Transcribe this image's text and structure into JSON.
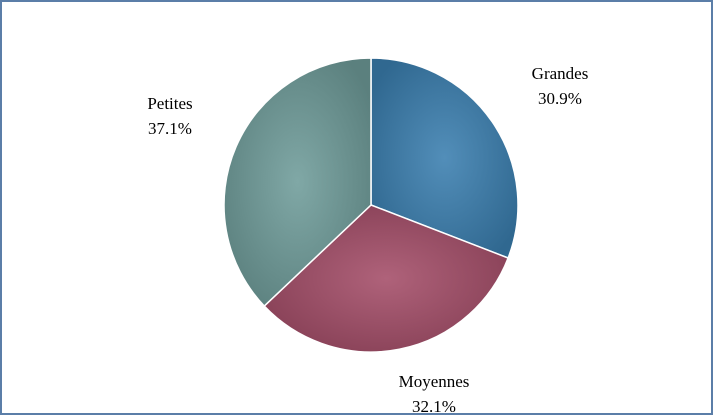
{
  "chart_data": {
    "type": "pie",
    "title": "",
    "slices": [
      {
        "label": "Grandes",
        "value": 30.9,
        "value_text": "30.9%",
        "color": "#3a7fb0"
      },
      {
        "label": "Moyennes",
        "value": 32.1,
        "value_text": "32.1%",
        "color": "#a44d68"
      },
      {
        "label": "Petites",
        "value": 37.1,
        "value_text": "37.1%",
        "color": "#6f9c9a"
      }
    ],
    "start_angle_deg": 0,
    "direction": "clockwise",
    "legend": "none"
  }
}
